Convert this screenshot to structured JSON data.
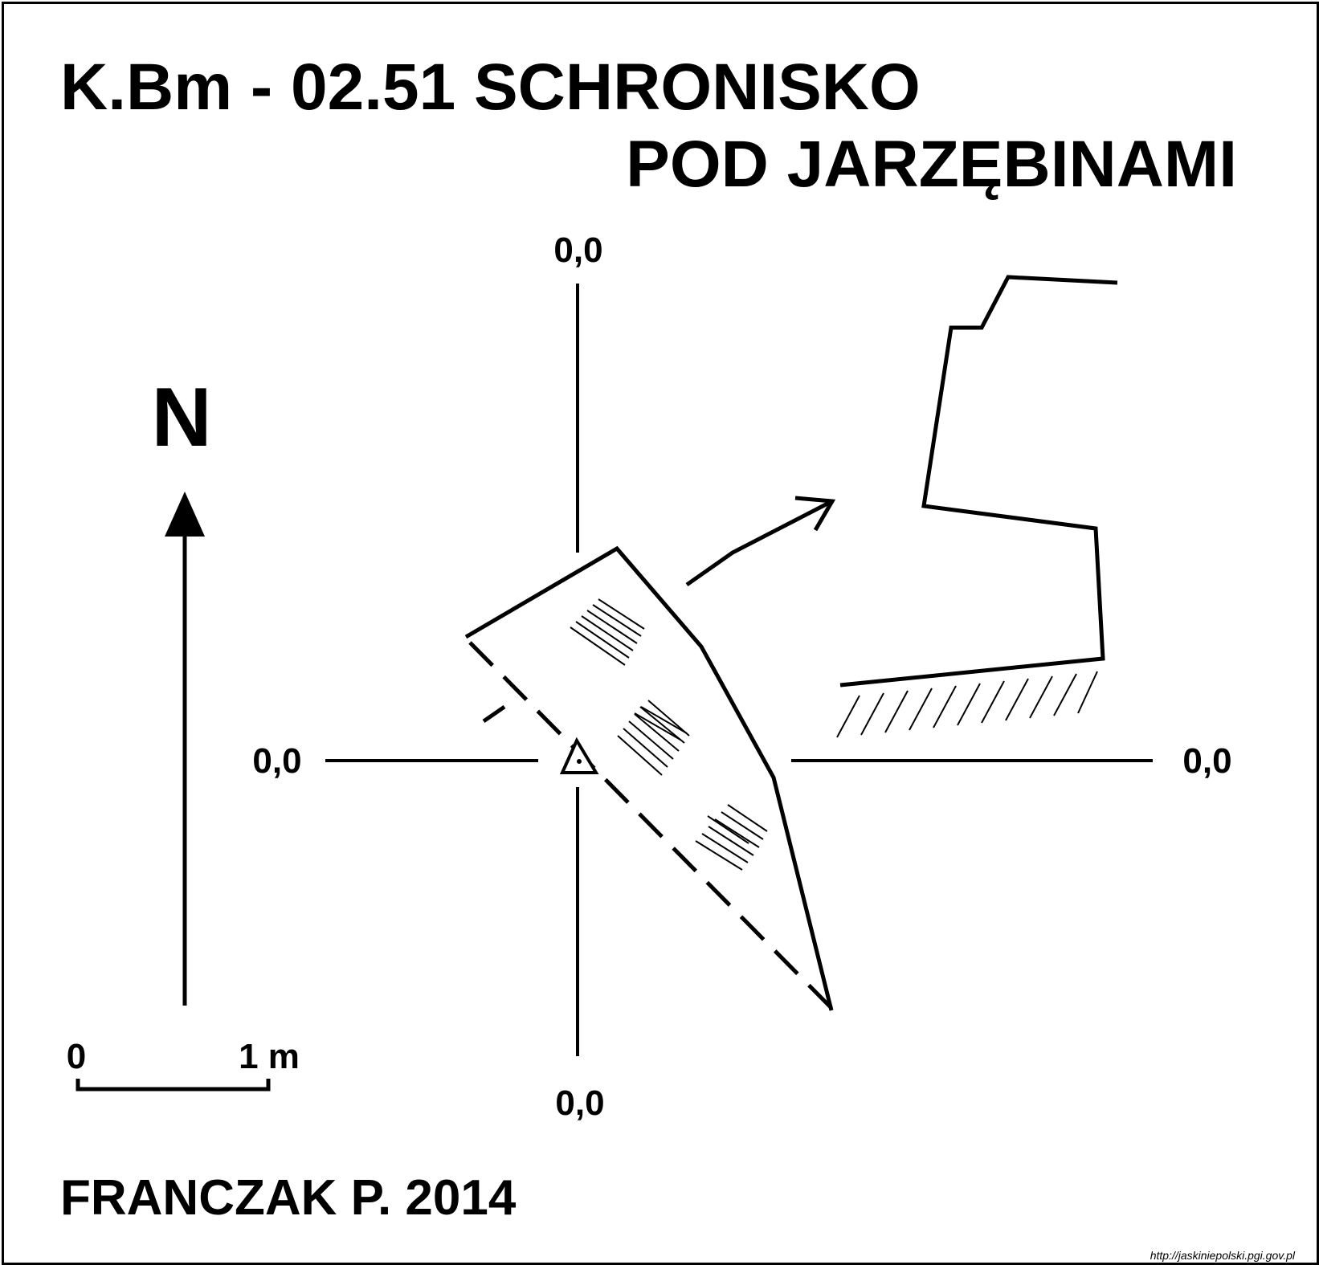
{
  "title": {
    "line1": "K.Bm - 02.51  SCHRONISKO",
    "line2": "POD JARZĘBINAMI"
  },
  "north_arrow": {
    "label": "N"
  },
  "axis_labels": {
    "top": "0,0",
    "left": "0,0",
    "right": "0,0",
    "bottom": "0,0"
  },
  "scale_bar": {
    "start": "0",
    "end": "1 m"
  },
  "author": "FRANCZAK P.  2014",
  "credit": "http://jaskiniepolski.pgi.gov.pl",
  "colors": {
    "ink": "#000000",
    "background": "#ffffff"
  }
}
